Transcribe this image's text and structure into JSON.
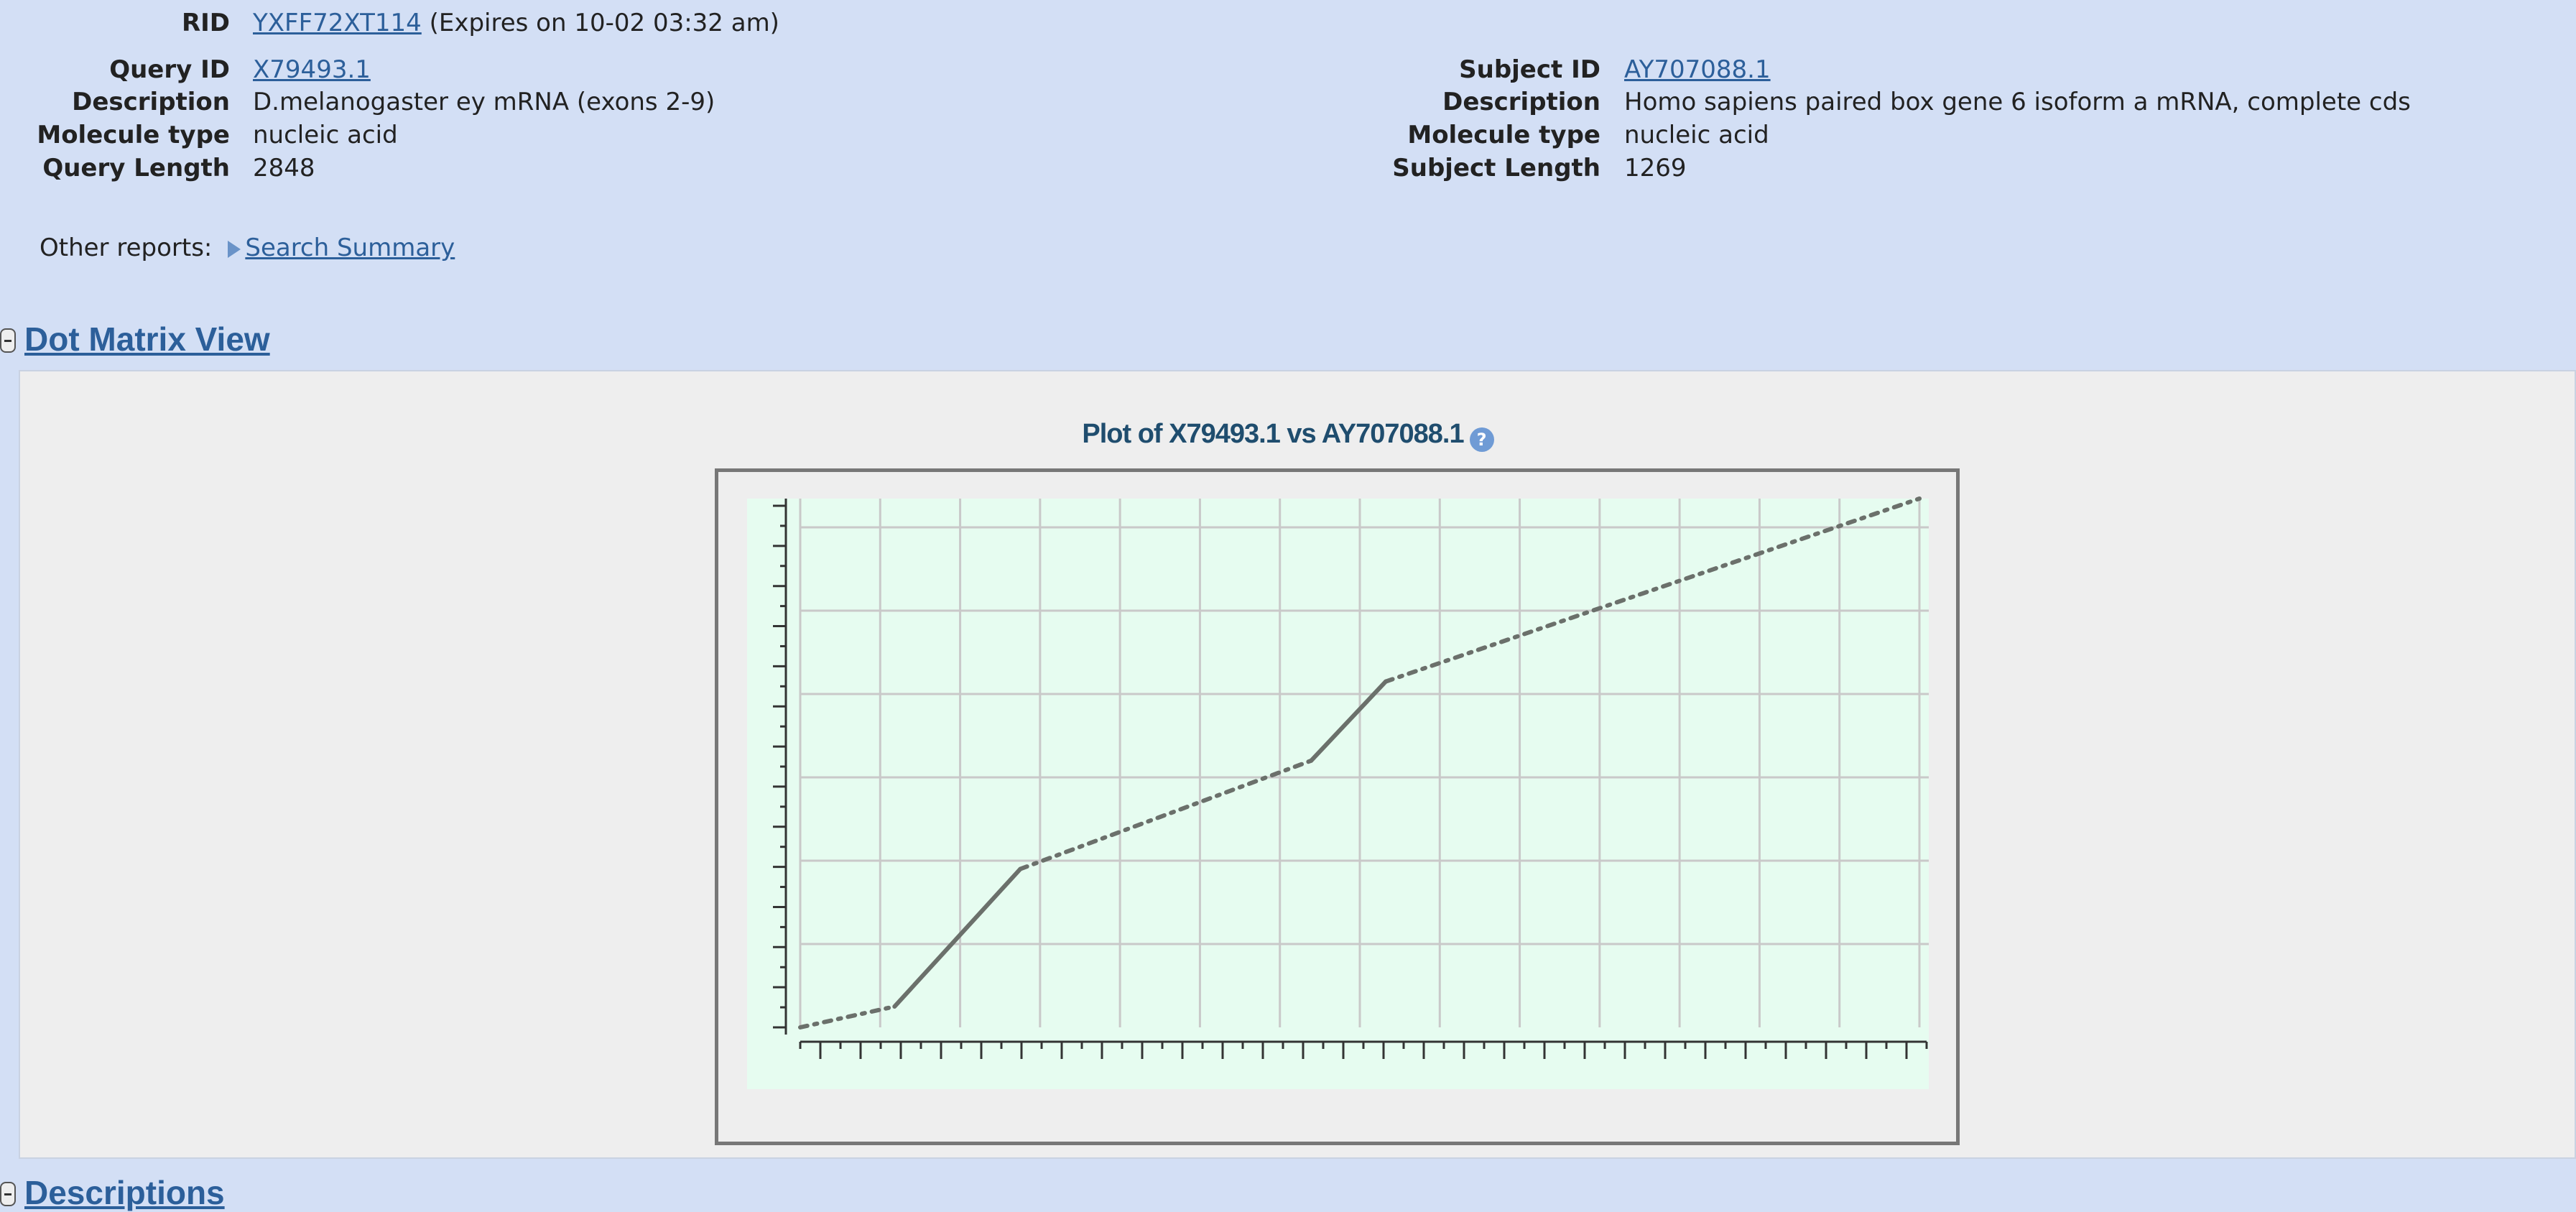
{
  "header": {
    "rid_label": "RID",
    "rid_value": "YXFF72XT114",
    "rid_expiry": "(Expires on 10-02 03:32 am)"
  },
  "query": {
    "id_label": "Query ID",
    "id_value": "X79493.1",
    "desc_label": "Description",
    "desc_value": "D.melanogaster ey mRNA (exons 2-9)",
    "mol_label": "Molecule type",
    "mol_value": "nucleic acid",
    "len_label": "Query Length",
    "len_value": "2848"
  },
  "subject": {
    "id_label": "Subject ID",
    "id_value": "AY707088.1",
    "desc_label": "Description",
    "desc_value": "Homo sapiens paired box gene 6 isoform a mRNA, complete cds",
    "mol_label": "Molecule type",
    "mol_value": "nucleic acid",
    "len_label": "Subject Length",
    "len_value": "1269"
  },
  "other_reports": {
    "label": "Other reports:",
    "link": "Search Summary"
  },
  "sections": {
    "dot_matrix": "Dot Matrix View",
    "descriptions": "Descriptions"
  },
  "plot": {
    "title": "Plot of X79493.1 vs AY707088.1",
    "help_icon": "question-circle-icon"
  },
  "colors": {
    "page_bg": "#d3dff5",
    "link": "#2c5f9a",
    "plot_bg": "#e6fcf0",
    "line": "#6b706b"
  },
  "chart_data": {
    "type": "line",
    "title": "Plot of X79493.1 vs AY707088.1",
    "xlim": [
      0,
      2848
    ],
    "ylim": [
      0,
      1269
    ],
    "grid": true,
    "segments": [
      {
        "style": "dashed",
        "points": [
          [
            0,
            0
          ],
          [
            240,
            50
          ]
        ]
      },
      {
        "style": "solid",
        "points": [
          [
            240,
            50
          ],
          [
            560,
            380
          ]
        ]
      },
      {
        "style": "dashed",
        "points": [
          [
            560,
            380
          ],
          [
            1300,
            640
          ]
        ]
      },
      {
        "style": "solid",
        "points": [
          [
            1300,
            640
          ],
          [
            1490,
            830
          ]
        ]
      },
      {
        "style": "dashed",
        "points": [
          [
            1490,
            830
          ],
          [
            2848,
            1269
          ]
        ]
      }
    ]
  }
}
